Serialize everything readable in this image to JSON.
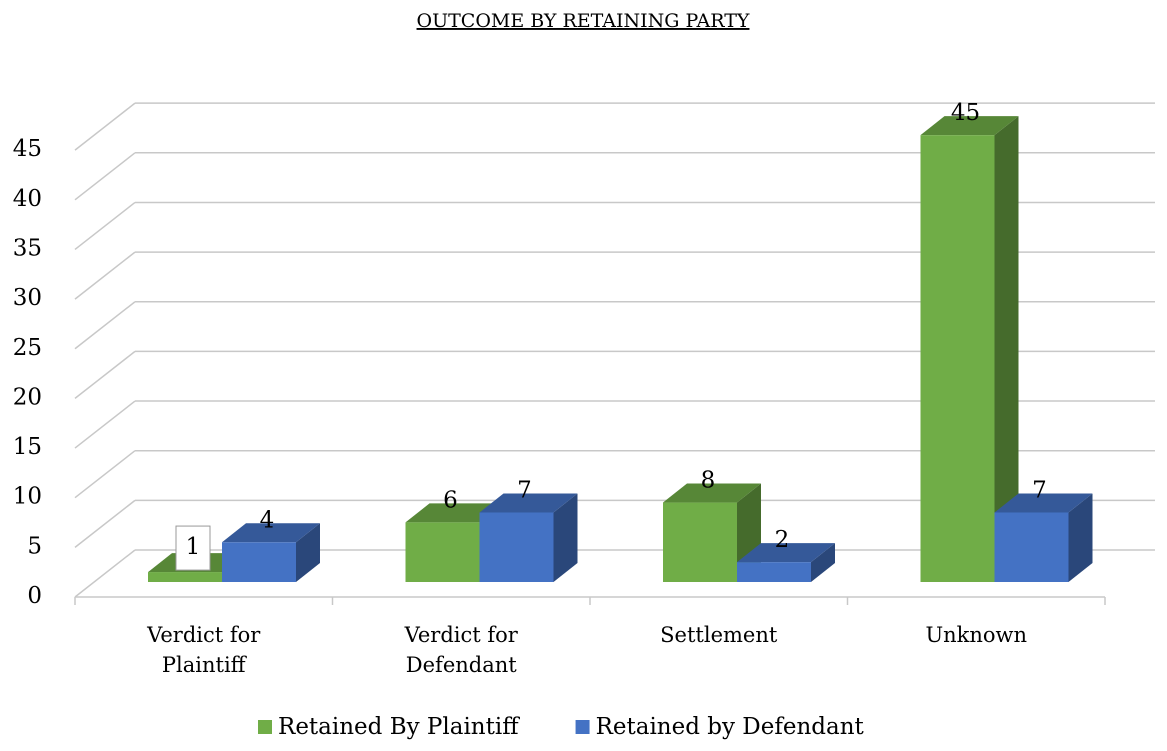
{
  "chart_data": {
    "type": "bar3d",
    "title": "OUTCOME BY RETAINING PARTY",
    "categories": [
      "Verdict for Plaintiff",
      "Verdict for Defendant",
      "Settlement",
      "Unknown"
    ],
    "series": [
      {
        "name": "Retained By Plaintiff",
        "color": "#70ad47",
        "values": [
          1,
          6,
          8,
          45
        ]
      },
      {
        "name": "Retained by Defendant",
        "color": "#4472c4",
        "values": [
          4,
          7,
          2,
          7
        ]
      }
    ],
    "ylim": [
      0,
      45
    ],
    "yticks": [
      0,
      5,
      10,
      15,
      20,
      25,
      30,
      35,
      40,
      45
    ],
    "grid": true,
    "legend": "bottom"
  }
}
